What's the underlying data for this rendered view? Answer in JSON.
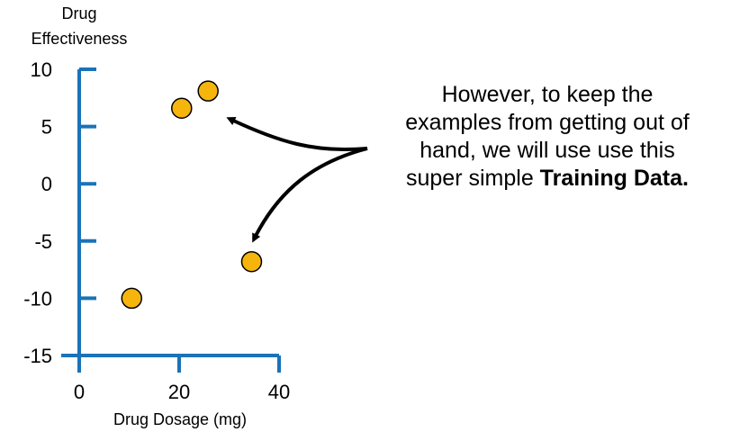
{
  "chart_data": {
    "type": "scatter",
    "ylabel_line1": "Drug",
    "ylabel_line2": "Effectiveness",
    "xlabel": "Drug Dosage (mg)",
    "xlim": [
      0,
      40
    ],
    "ylim": [
      -15,
      10
    ],
    "x_ticks": [
      "0",
      "20",
      "40"
    ],
    "y_ticks": [
      "10",
      "5",
      "0",
      "-5",
      "-10",
      "-15"
    ],
    "points": [
      {
        "x": 10.5,
        "y": -10
      },
      {
        "x": 20.5,
        "y": 6.6
      },
      {
        "x": 25.8,
        "y": 8.1
      },
      {
        "x": 34.5,
        "y": -6.8
      }
    ],
    "grid": false
  },
  "annotation": {
    "line1": "However, to keep the",
    "line2": "examples from getting out of",
    "line3": "hand, we will use use this",
    "line4_prefix": "super simple ",
    "line4_bold": "Training Data."
  },
  "colors": {
    "axis": "#1a73b8",
    "point_fill": "#f5b50d",
    "point_stroke": "#000000",
    "arrow": "#000000"
  }
}
